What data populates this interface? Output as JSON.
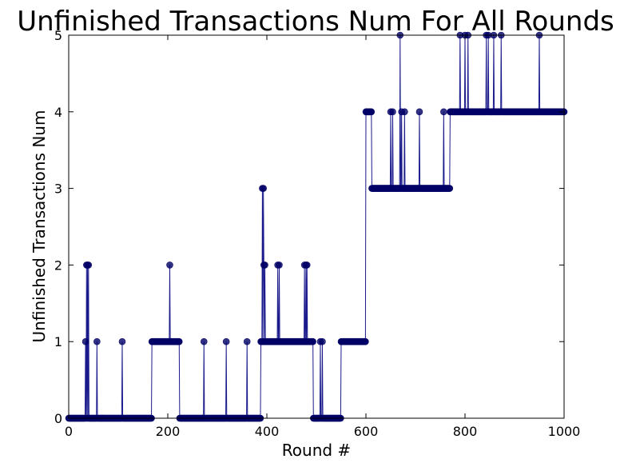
{
  "chart_data": {
    "type": "line",
    "title": "Unfinished Transactions Num For All Rounds",
    "xlabel": "Round #",
    "ylabel": "Unfinished Transactions Num",
    "xlim": [
      0,
      1000
    ],
    "ylim": [
      0,
      5
    ],
    "xticks": [
      0,
      200,
      400,
      600,
      800,
      1000
    ],
    "yticks": [
      0,
      1,
      2,
      3,
      4,
      5
    ],
    "grid": false,
    "marker": "circle",
    "line_color": "#1a1a8c",
    "marker_color": "#000066",
    "segments": [
      {
        "from": 0,
        "to": 33,
        "y": 0
      },
      {
        "from": 165,
        "to": 168,
        "y": 0
      },
      {
        "from": 168,
        "to": 224,
        "y": 1
      },
      {
        "from": 224,
        "to": 388,
        "y": 0
      },
      {
        "from": 388,
        "to": 390,
        "y": 1
      },
      {
        "from": 396,
        "to": 494,
        "y": 1
      },
      {
        "from": 494,
        "to": 550,
        "y": 0
      },
      {
        "from": 550,
        "to": 598,
        "y": 1
      },
      {
        "from": 600,
        "to": 612,
        "y": 4
      },
      {
        "from": 612,
        "to": 770,
        "y": 3
      },
      {
        "from": 770,
        "to": 1000,
        "y": 4
      }
    ],
    "spikes": [
      {
        "x": 34,
        "y": 1
      },
      {
        "x": 36,
        "y": 2
      },
      {
        "x": 38,
        "y": 2
      },
      {
        "x": 40,
        "y": 2
      },
      {
        "x": 57,
        "y": 1
      },
      {
        "x": 108,
        "y": 1
      },
      {
        "x": 204,
        "y": 2
      },
      {
        "x": 273,
        "y": 1
      },
      {
        "x": 318,
        "y": 1
      },
      {
        "x": 360,
        "y": 1
      },
      {
        "x": 391,
        "y": 3
      },
      {
        "x": 393,
        "y": 3
      },
      {
        "x": 394,
        "y": 2
      },
      {
        "x": 396,
        "y": 2
      },
      {
        "x": 422,
        "y": 2
      },
      {
        "x": 425,
        "y": 2
      },
      {
        "x": 476,
        "y": 2
      },
      {
        "x": 479,
        "y": 2
      },
      {
        "x": 481,
        "y": 2
      },
      {
        "x": 508,
        "y": 1
      },
      {
        "x": 512,
        "y": 1
      },
      {
        "x": 650,
        "y": 4
      },
      {
        "x": 654,
        "y": 4
      },
      {
        "x": 669,
        "y": 5
      },
      {
        "x": 672,
        "y": 4
      },
      {
        "x": 678,
        "y": 4
      },
      {
        "x": 708,
        "y": 4
      },
      {
        "x": 757,
        "y": 4
      },
      {
        "x": 790,
        "y": 5
      },
      {
        "x": 800,
        "y": 5
      },
      {
        "x": 806,
        "y": 5
      },
      {
        "x": 843,
        "y": 5
      },
      {
        "x": 847,
        "y": 5
      },
      {
        "x": 858,
        "y": 5
      },
      {
        "x": 873,
        "y": 5
      },
      {
        "x": 950,
        "y": 5
      }
    ]
  }
}
